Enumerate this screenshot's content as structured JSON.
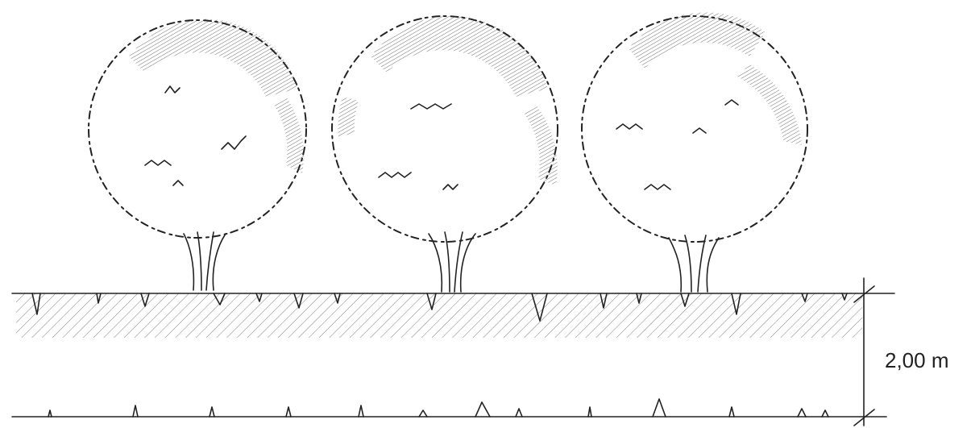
{
  "dimension": {
    "label": "2,00 m"
  }
}
